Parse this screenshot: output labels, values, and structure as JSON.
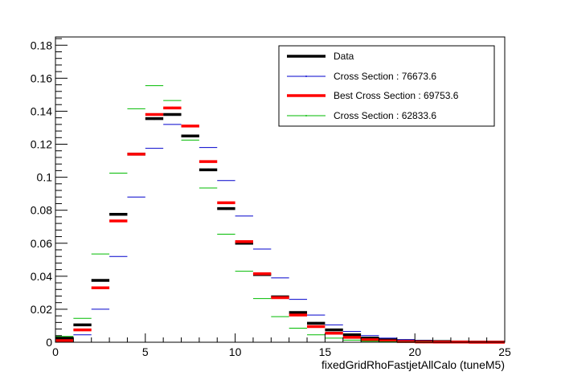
{
  "chart_data": {
    "type": "line",
    "title": "",
    "xlabel": "fixedGridRhoFastjetAllCalo (tuneM5)",
    "ylabel": "",
    "xlim": [
      0,
      25
    ],
    "ylim": [
      0,
      0.185
    ],
    "x_ticks": [
      0,
      5,
      10,
      15,
      20,
      25
    ],
    "x_tick_labels": [
      "0",
      "5",
      "10",
      "15",
      "20",
      "25"
    ],
    "y_ticks": [
      0,
      0.02,
      0.04,
      0.06,
      0.08,
      0.1,
      0.12,
      0.14,
      0.16,
      0.18
    ],
    "y_tick_labels": [
      "0",
      "0.02",
      "0.04",
      "0.06",
      "0.08",
      "0.1",
      "0.12",
      "0.14",
      "0.16",
      "0.18"
    ],
    "bin_width": 1,
    "x": [
      0.5,
      1.5,
      2.5,
      3.5,
      4.5,
      5.5,
      6.5,
      7.5,
      8.5,
      9.5,
      10.5,
      11.5,
      12.5,
      13.5,
      14.5,
      15.5,
      16.5,
      17.5,
      18.5,
      19.5,
      20.5,
      21.5,
      22.5,
      23.5,
      24.5
    ],
    "legend_position": "top-right",
    "series": [
      {
        "name": "Data",
        "color": "#000000",
        "style": "thick",
        "values": [
          0.0025,
          0.0105,
          0.0375,
          0.0775,
          0.114,
          0.1355,
          0.138,
          0.125,
          0.1045,
          0.081,
          0.06,
          0.041,
          0.0275,
          0.018,
          0.0115,
          0.0075,
          0.0045,
          0.0025,
          0.0015,
          0.001,
          0.0006,
          0.0004,
          0.0002,
          0.0001,
          0.0001
        ]
      },
      {
        "name": "Cross Section : 76673.6",
        "color": "#0000cc",
        "style": "thin",
        "values": [
          0.0005,
          0.0045,
          0.02,
          0.052,
          0.088,
          0.1175,
          0.132,
          0.1305,
          0.118,
          0.098,
          0.0765,
          0.0565,
          0.039,
          0.026,
          0.0165,
          0.0105,
          0.0065,
          0.004,
          0.0025,
          0.0015,
          0.001,
          0.0006,
          0.0004,
          0.0002,
          0.0001
        ]
      },
      {
        "name": "Best Cross Section : 69753.6",
        "color": "#ff0000",
        "style": "thick",
        "values": [
          0.001,
          0.0075,
          0.033,
          0.0735,
          0.114,
          0.138,
          0.142,
          0.131,
          0.1095,
          0.0845,
          0.061,
          0.0415,
          0.027,
          0.0165,
          0.0095,
          0.0055,
          0.003,
          0.0015,
          0.0008,
          0.0004,
          0.0002,
          0.0001,
          0.0001,
          0.0,
          0.0
        ]
      },
      {
        "name": "Cross Section : 62833.6",
        "color": "#00bb00",
        "style": "thin",
        "values": [
          0.0035,
          0.0145,
          0.0535,
          0.1025,
          0.1415,
          0.1555,
          0.1465,
          0.1225,
          0.0935,
          0.0655,
          0.043,
          0.0265,
          0.0155,
          0.0085,
          0.0045,
          0.0025,
          0.0013,
          0.0006,
          0.0003,
          0.0001,
          0.0001,
          0.0,
          0.0,
          0.0,
          0.0
        ]
      }
    ]
  }
}
